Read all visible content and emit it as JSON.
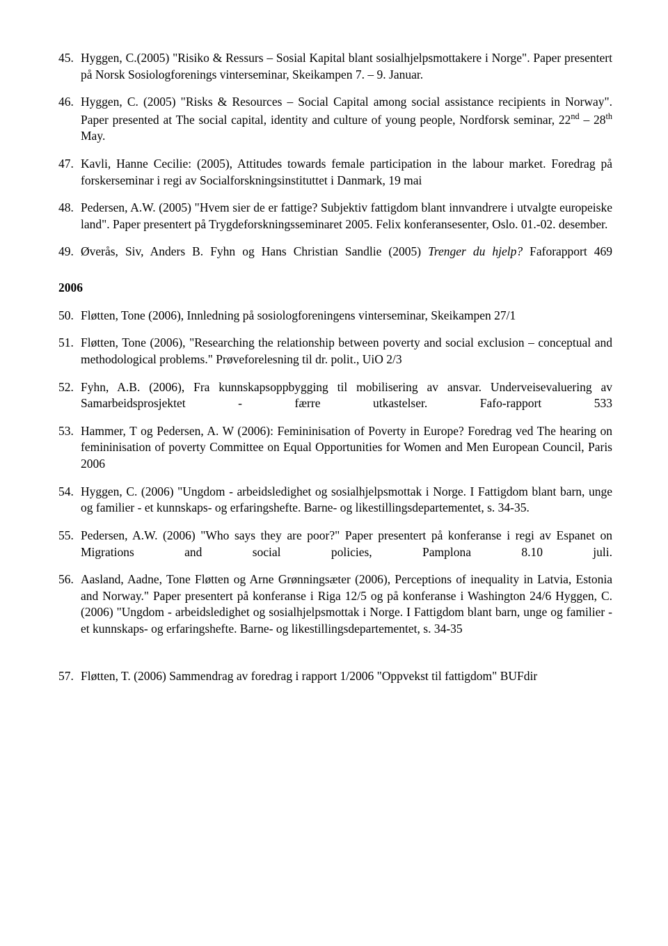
{
  "entries": [
    {
      "num": "45.",
      "text": "Hyggen, C.(2005) \"Risiko & Ressurs – Sosial Kapital blant sosialhjelpsmottakere i Norge\". Paper presentert på Norsk Sosiologforenings vinterseminar, Skeikampen 7. – 9. Januar."
    },
    {
      "num": "46.",
      "html": "Hyggen, C. (2005) \"Risks & Resources – Social Capital among social assistance recipients in Norway\". Paper presented at The social capital, identity and culture of young people, Nordforsk seminar, 22<span class=\"sup\">nd</span> – 28<span class=\"sup\">th</span> May."
    },
    {
      "num": "47.",
      "text": "Kavli, Hanne Cecilie: (2005), Attitudes towards female participation in the labour market. Foredrag på forskerseminar i regi av Socialforskningsinstituttet i Danmark, 19 mai"
    },
    {
      "num": "48.",
      "text": "Pedersen, A.W. (2005) \"Hvem sier de er fattige? Subjektiv fattigdom blant innvandrere i utvalgte europeiske land\". Paper presentert på Trygdeforskningsseminaret 2005. Felix konferansesenter, Oslo. 01.-02. desember."
    },
    {
      "num": "49.",
      "html": "Øverås, Siv, Anders B. Fyhn og Hans Christian Sandlie (2005) <span class=\"italic\">Trenger du hjelp?</span> Faforapport 469",
      "cls": "entry-49"
    }
  ],
  "year": "2006",
  "entries2": [
    {
      "num": "50.",
      "text": "Fløtten, Tone (2006), Innledning på sosiologforeningens vinterseminar, Skeikampen 27/1"
    },
    {
      "num": "51.",
      "text": "Fløtten, Tone (2006), \"Researching the relationship between poverty and social exclusion – conceptual and methodological problems.\" Prøveforelesning til dr. polit., UiO 2/3"
    },
    {
      "num": "52.",
      "text": "Fyhn, A.B. (2006), Fra kunnskapsoppbygging til mobilisering av ansvar. Underveisevaluering av Samarbeidsprosjektet - færre utkastelser. Fafo-rapport 533",
      "cls": "entry-52"
    },
    {
      "num": "53.",
      "text": "Hammer, T og Pedersen, A. W (2006): Femininisation of Poverty in Europe? Foredrag ved The hearing on femininisation of poverty Committee on Equal Opportunities for Women and Men European Council, Paris 2006"
    },
    {
      "num": "54.",
      "text": "Hyggen, C. (2006) \"Ungdom - arbeidsledighet og sosialhjelpsmottak i Norge. I Fattigdom blant barn, unge og familier - et kunnskaps- og erfaringshefte. Barne- og likestillingsdepartementet, s. 34-35."
    },
    {
      "num": "55.",
      "text": "Pedersen, A.W. (2006) \"Who says they are poor?\" Paper presentert på konferanse i regi av Espanet on Migrations and social policies, Pamplona 8.10 juli.",
      "cls": "entry-55"
    },
    {
      "num": "56.",
      "text": "Aasland, Aadne, Tone Fløtten og Arne Grønningsæter (2006), Perceptions of inequality in Latvia, Estonia and Norway.\" Paper presentert på konferanse i Riga 12/5 og på konferanse i Washington 24/6 Hyggen, C. (2006) \"Ungdom - arbeidsledighet og sosialhjelpsmottak i Norge. I Fattigdom blant barn, unge og familier - et kunnskaps- og erfaringshefte. Barne- og likestillingsdepartementet, s. 34-35"
    }
  ],
  "entry57": {
    "num": "57.",
    "text": "Fløtten, T. (2006) Sammendrag av foredrag i rapport 1/2006 \"Oppvekst til fattigdom\" BUFdir"
  }
}
